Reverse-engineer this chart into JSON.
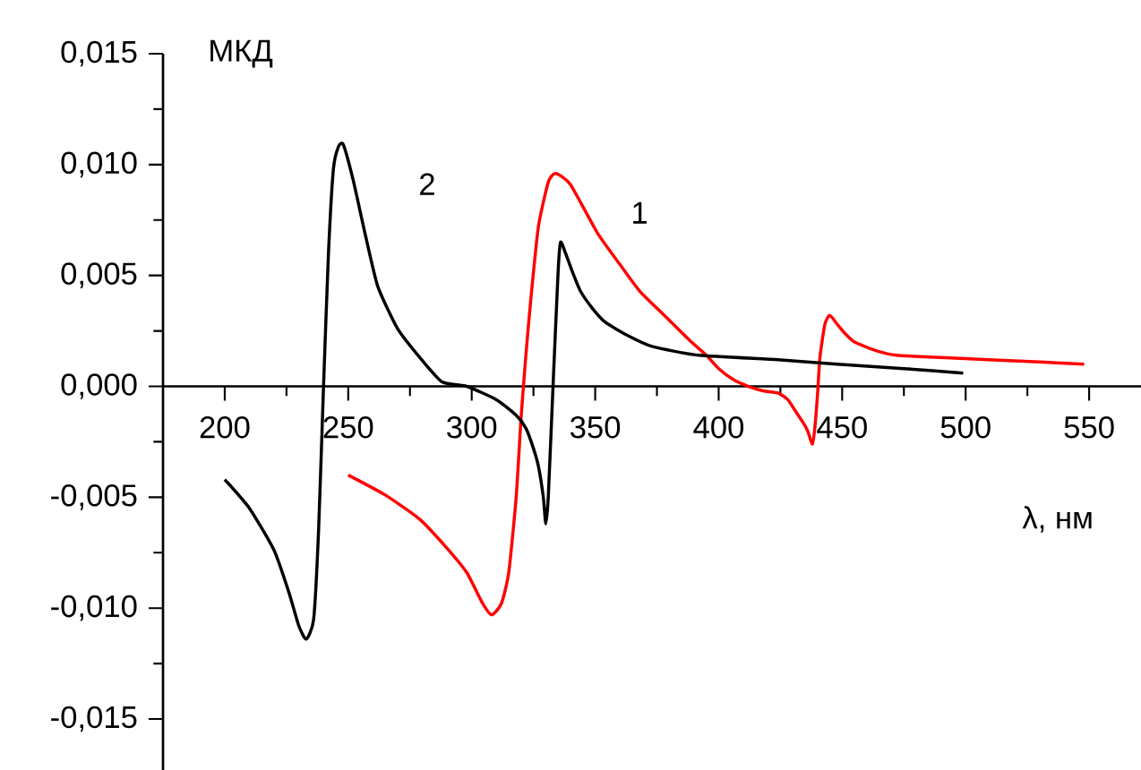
{
  "chart_data": {
    "type": "line",
    "xlabel": "λ, нм",
    "ylabel": "МКД",
    "xlim": [
      175,
      571
    ],
    "ylim": [
      -0.0173,
      0.015
    ],
    "xticks": [
      200,
      250,
      300,
      350,
      400,
      450,
      500,
      550
    ],
    "yticks": [
      {
        "value": -0.015,
        "label": "-0,015"
      },
      {
        "value": -0.01,
        "label": "-0,010"
      },
      {
        "value": -0.005,
        "label": "-0,005"
      },
      {
        "value": 0,
        "label": "0,000"
      },
      {
        "value": 0.005,
        "label": "0,005"
      },
      {
        "value": 0.01,
        "label": "0,010"
      },
      {
        "value": 0.015,
        "label": "0,015"
      }
    ],
    "series": [
      {
        "name": "1",
        "color": "#ff0000",
        "x": [
          250,
          265,
          279,
          290,
          298,
          304,
          308,
          312,
          315,
          318,
          320,
          322,
          324,
          327,
          331,
          334,
          340,
          351,
          360,
          368,
          378,
          388,
          395,
          400,
          406,
          412,
          418,
          424,
          428,
          431,
          434,
          436,
          438,
          439,
          440,
          441,
          443,
          445,
          448,
          451,
          455,
          464,
          472,
          490,
          509,
          530,
          548
        ],
        "values": [
          -0.004,
          -0.0049,
          -0.006,
          -0.0073,
          -0.0084,
          -0.0097,
          -0.0103,
          -0.0098,
          -0.0084,
          -0.005,
          -0.0014,
          0.0015,
          0.004,
          0.0072,
          0.0092,
          0.0096,
          0.0091,
          0.0069,
          0.0055,
          0.0043,
          0.0032,
          0.0021,
          0.0014,
          0.0008,
          0.0003,
          0,
          -0.0002,
          -0.0003,
          -0.0006,
          -0.0011,
          -0.0016,
          -0.002,
          -0.0026,
          -0.0018,
          -0.0004,
          0.0013,
          0.0028,
          0.0032,
          0.0028,
          0.0024,
          0.002,
          0.0016,
          0.0014,
          0.0013,
          0.0012,
          0.0011,
          0.001
        ]
      },
      {
        "name": "2",
        "color": "#000000",
        "x": [
          200,
          210,
          220,
          226,
          230,
          233,
          236,
          238,
          240,
          242,
          244,
          246,
          248,
          252,
          257,
          262,
          270,
          279,
          288,
          298,
          310,
          318,
          322,
          325,
          327,
          329,
          330,
          331,
          333,
          335,
          336,
          338,
          341,
          344,
          349,
          354,
          363,
          373,
          392,
          424,
          448,
          475,
          499
        ],
        "values": [
          -0.0042,
          -0.0055,
          -0.0074,
          -0.0093,
          -0.0108,
          -0.0114,
          -0.0105,
          -0.0065,
          0,
          0.006,
          0.0098,
          0.0108,
          0.0109,
          0.0093,
          0.0068,
          0.0045,
          0.0026,
          0.0013,
          0.0002,
          0,
          -0.0006,
          -0.0013,
          -0.0019,
          -0.0028,
          -0.0036,
          -0.005,
          -0.0062,
          -0.005,
          0.0002,
          0.0052,
          0.0065,
          0.006,
          0.0051,
          0.0043,
          0.0035,
          0.0029,
          0.0023,
          0.0018,
          0.0014,
          0.0012,
          0.001,
          0.0008,
          0.0006
        ]
      }
    ]
  }
}
